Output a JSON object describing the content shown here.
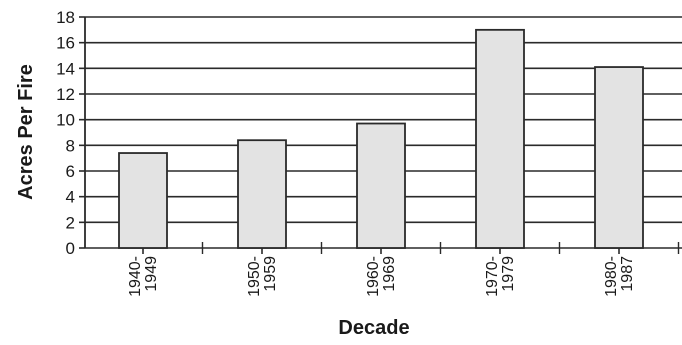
{
  "chart_data": {
    "type": "bar",
    "title": "",
    "xlabel": "Decade",
    "ylabel": "Acres Per Fire",
    "categories": [
      {
        "line1": "1940-",
        "line2": "1949"
      },
      {
        "line1": "1950-",
        "line2": "1959"
      },
      {
        "line1": "1960-",
        "line2": "1969"
      },
      {
        "line1": "1970-",
        "line2": "1979"
      },
      {
        "line1": "1980-",
        "line2": "1987"
      }
    ],
    "values": [
      7.4,
      8.4,
      9.7,
      17.0,
      14.1
    ],
    "ylim": [
      0,
      18
    ],
    "yticks": [
      "0",
      "2",
      "4",
      "6",
      "8",
      "10",
      "12",
      "14",
      "16",
      "18"
    ],
    "grid": true,
    "colors": {
      "bar_fill": "#e3e3e3",
      "bar_stroke": "#2a2a2a",
      "grid": "#2a2a2a",
      "axis": "#2a2a2a"
    }
  }
}
